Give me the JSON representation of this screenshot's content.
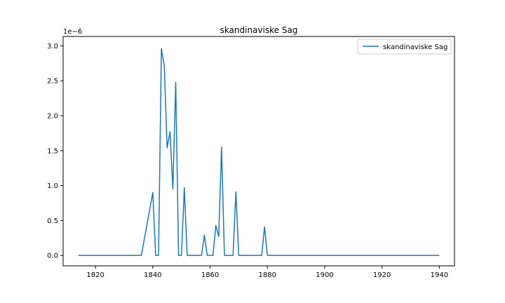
{
  "chart_data": {
    "type": "line",
    "title": "skandinaviske Sag",
    "xlabel": "",
    "ylabel": "",
    "y_offset_label": "1e−6",
    "xlim": [
      1808.7,
      1945.3
    ],
    "ylim": [
      -1.49e-07,
      3.135e-06
    ],
    "xticks": [
      1820,
      1840,
      1860,
      1880,
      1900,
      1920,
      1940
    ],
    "yticks": [
      0,
      5e-07,
      1e-06,
      1.5e-06,
      2e-06,
      2.5e-06,
      3e-06
    ],
    "ytick_labels": [
      "0.0",
      "0.5",
      "1.0",
      "1.5",
      "2.0",
      "2.5",
      "3.0"
    ],
    "grid": false,
    "legend": "top-right",
    "series": [
      {
        "name": "skandinaviske Sag",
        "color": "#1f77b4",
        "x": [
          1814,
          1836,
          1840,
          1841,
          1842,
          1843,
          1844,
          1845,
          1846,
          1847,
          1848,
          1849,
          1850,
          1851,
          1852,
          1853,
          1856,
          1857,
          1858,
          1859,
          1860,
          1861,
          1862,
          1863,
          1864,
          1865,
          1866,
          1867,
          1868,
          1869,
          1870,
          1871,
          1872,
          1873,
          1874,
          1875,
          1876,
          1877,
          1878,
          1879,
          1880,
          1940
        ],
        "y": [
          0,
          0,
          9e-07,
          0,
          0,
          2.96e-06,
          2.72e-06,
          1.54e-06,
          1.77e-06,
          9.5e-07,
          2.48e-06,
          0,
          0,
          9.7e-07,
          0,
          0,
          0,
          0,
          2.9e-07,
          0,
          0,
          0,
          4.3e-07,
          2.7e-07,
          1.55e-06,
          0,
          0,
          0,
          0,
          9.1e-07,
          0,
          0,
          0,
          0,
          0,
          0,
          0,
          0,
          0,
          4.1e-07,
          0,
          0
        ]
      }
    ]
  }
}
